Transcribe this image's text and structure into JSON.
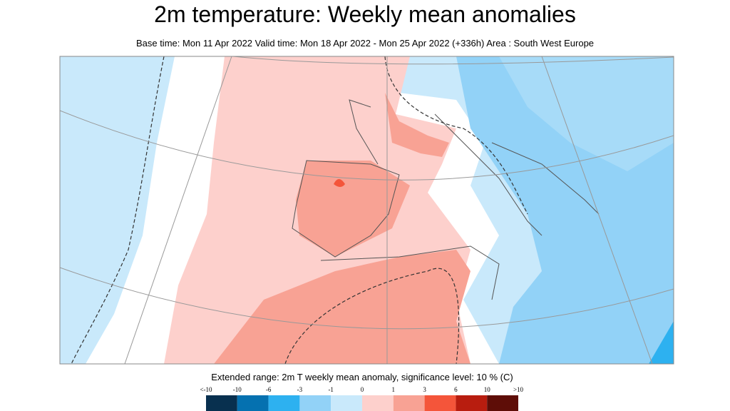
{
  "header": {
    "title": "2m temperature: Weekly mean anomalies",
    "subtitle": "Base time: Mon 11 Apr 2022 Valid time: Mon 18 Apr 2022 - Mon 25 Apr 2022 (+336h) Area : South West Europe"
  },
  "legend": {
    "title": "Extended range: 2m T weekly mean anomaly, significance level: 10 % (C)",
    "labels": [
      "<-10",
      "-10",
      "-6",
      "-3",
      "-1",
      "0",
      "1",
      "3",
      "6",
      "10",
      ">10"
    ],
    "colors": [
      "#08304f",
      "#0571b0",
      "#2db1f0",
      "#92d2f7",
      "#c9e9fb",
      "#fdd0cc",
      "#f8a294",
      "#f4553a",
      "#b81d0f",
      "#5e0d07"
    ]
  }
}
